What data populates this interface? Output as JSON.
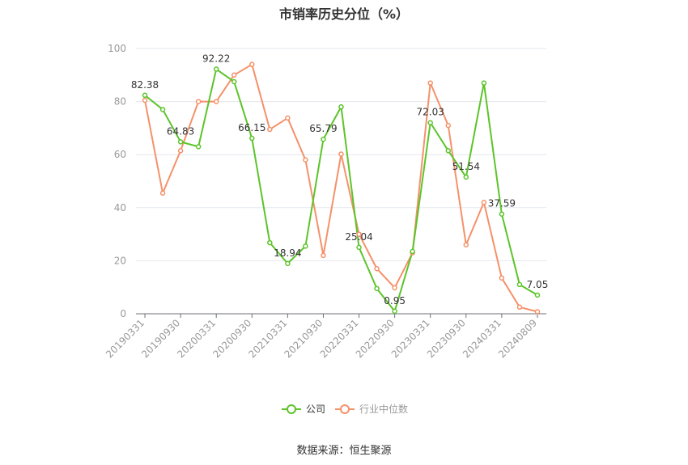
{
  "title": "市销率历史分位（%）",
  "source": "数据来源：恒生聚源",
  "colors": {
    "company": "#5cc42a",
    "industry": "#f5916a",
    "grid": "#e4e7ee",
    "axis": "#999999",
    "label": "#333333"
  },
  "chart_data": {
    "type": "line",
    "title": "市销率历史分位（%）",
    "ylim": [
      0,
      100
    ],
    "yticks": [
      0,
      20,
      40,
      60,
      80,
      100
    ],
    "grid": true,
    "legend_position": "bottom",
    "x": [
      "20190331",
      "20190630",
      "20190930",
      "20191231",
      "20200331",
      "20200630",
      "20200930",
      "20201231",
      "20210331",
      "20210630",
      "20210930",
      "20211231",
      "20220331",
      "20220630",
      "20220930",
      "20221231",
      "20230331",
      "20230630",
      "20230930",
      "20231231",
      "20240331",
      "20240630",
      "20240809"
    ],
    "x_tick_labels": [
      "20190331",
      "20190930",
      "20200331",
      "20200930",
      "20210331",
      "20210930",
      "20220331",
      "20220930",
      "20230331",
      "20230930",
      "20240331",
      "20240809"
    ],
    "series": [
      {
        "name": "公司",
        "values": [
          82.38,
          77.0,
          64.83,
          63.0,
          92.22,
          87.5,
          66.15,
          26.8,
          18.94,
          25.5,
          65.79,
          78.0,
          25.04,
          9.5,
          0.95,
          23.5,
          72.03,
          61.5,
          51.54,
          87.0,
          37.59,
          11.0,
          7.05
        ],
        "data_labels": [
          {
            "index": 0,
            "text": "82.38"
          },
          {
            "index": 2,
            "text": "64.83"
          },
          {
            "index": 4,
            "text": "92.22"
          },
          {
            "index": 6,
            "text": "66.15"
          },
          {
            "index": 8,
            "text": "18.94"
          },
          {
            "index": 10,
            "text": "65.79"
          },
          {
            "index": 12,
            "text": "25.04"
          },
          {
            "index": 14,
            "text": "0.95"
          },
          {
            "index": 16,
            "text": "72.03"
          },
          {
            "index": 18,
            "text": "51.54"
          },
          {
            "index": 20,
            "text": "37.59"
          },
          {
            "index": 22,
            "text": "7.05"
          }
        ]
      },
      {
        "name": "行业中位数",
        "values": [
          80.5,
          45.5,
          61.5,
          80.0,
          80.0,
          90.0,
          94.0,
          69.5,
          73.8,
          58.0,
          22.0,
          60.2,
          30.0,
          17.0,
          9.8,
          23.0,
          87.0,
          71.0,
          26.0,
          42.0,
          13.5,
          2.5,
          0.8
        ]
      }
    ]
  }
}
